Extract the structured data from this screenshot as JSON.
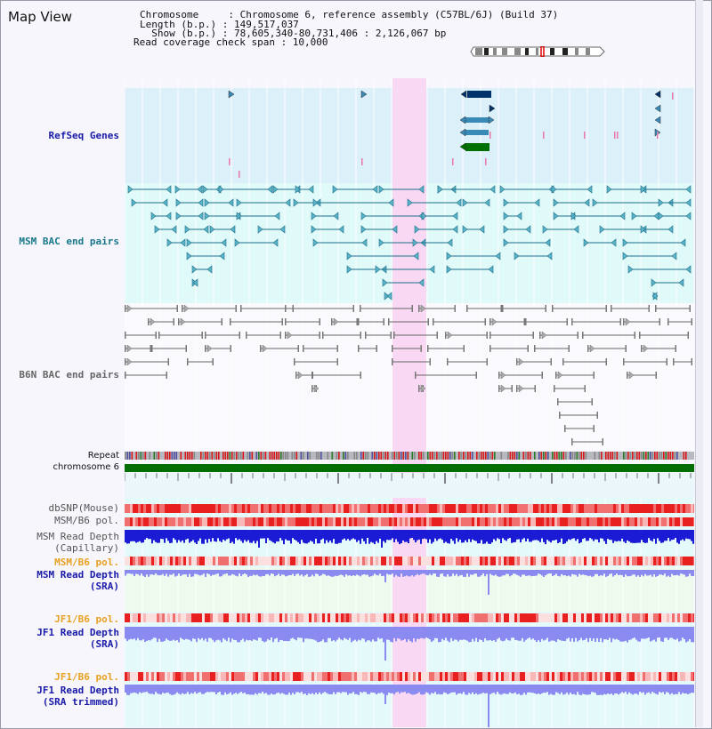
{
  "view_title": "Map View",
  "header": {
    "chromosome": "Chromosome     : Chromosome 6, reference assembly (C57BL/6J) (Build 37)",
    "length": "Length (b.p.) : 149,517,037",
    "show": "  Show (b.p.) : 78,605,340-80,731,406 : 2,126,067 bp",
    "coverage": "Read coverage check span : 10,000"
  },
  "tracks": {
    "refseq": "RefSeq Genes",
    "msm_bac": "MSM BAC end pairs",
    "b6n_bac": "B6N BAC end pairs",
    "repeat": "Repeat",
    "chromosome": "chromosome 6",
    "dbsnp": "dbSNP(Mouse)",
    "msm_b6_pol": "MSM/B6 pol.",
    "msm_read_depth": "MSM Read Depth",
    "capillary": "(Capillary)",
    "msm_b6_pol2": "MSM/B6 pol.",
    "msm_read_depth_sra": "MSM Read Depth",
    "sra": "(SRA)",
    "jf1_b6_pol": "JF1/B6 pol.",
    "jf1_read_depth": "JF1 Read Depth",
    "sra2": "(SRA)",
    "jf1_b6_pol2": "JF1/B6 pol.",
    "jf1_read_depth2": "JF1 Read Depth",
    "sra_trimmed": "(SRA trimmed)"
  },
  "ruler": {
    "ticks": [
      "78800000",
      "79200000",
      "79600000",
      "80000000",
      "80400000"
    ]
  },
  "colors": {
    "refseq_bg": "#dcf0fa",
    "msm_bac_bg": "#e0fafa",
    "highlight": "#f8d8f2",
    "gene_dark": "#00336a",
    "gene_mid": "#3a8ab8",
    "gene_green": "#007000",
    "bac_line": "#1e6e8a",
    "b6n_line": "#666666",
    "depth_blue": "#1b1bd6",
    "depth_light": "#8a8af0",
    "label_blue": "#1a1aa8",
    "label_teal": "#18788a",
    "label_orange": "#e8a020"
  }
}
